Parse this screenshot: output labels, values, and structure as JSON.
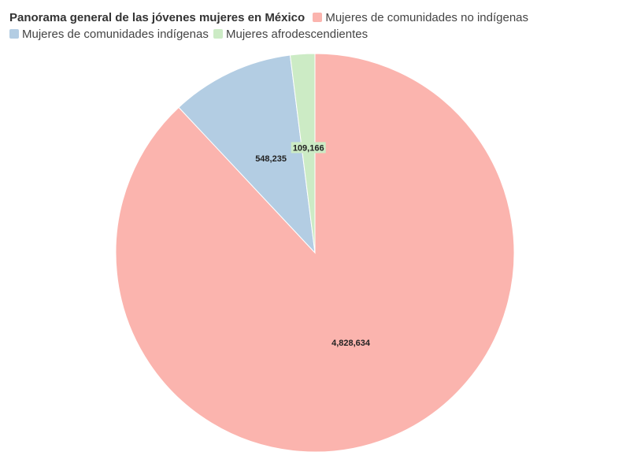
{
  "chart_data": {
    "type": "pie",
    "title": "Panorama general de las jóvenes mujeres en México",
    "legend_position": "top-left",
    "slices": [
      {
        "name": "Mujeres de comunidades no indígenas",
        "value": 4828634,
        "label": "4,828,634",
        "color": "#fbb4ae"
      },
      {
        "name": "Mujeres de comunidades indígenas",
        "value": 548235,
        "label": "548,235",
        "color": "#b3cde3"
      },
      {
        "name": "Mujeres afrodescendientes",
        "value": 109166,
        "label": "109,166",
        "color": "#ccebc5"
      }
    ]
  }
}
